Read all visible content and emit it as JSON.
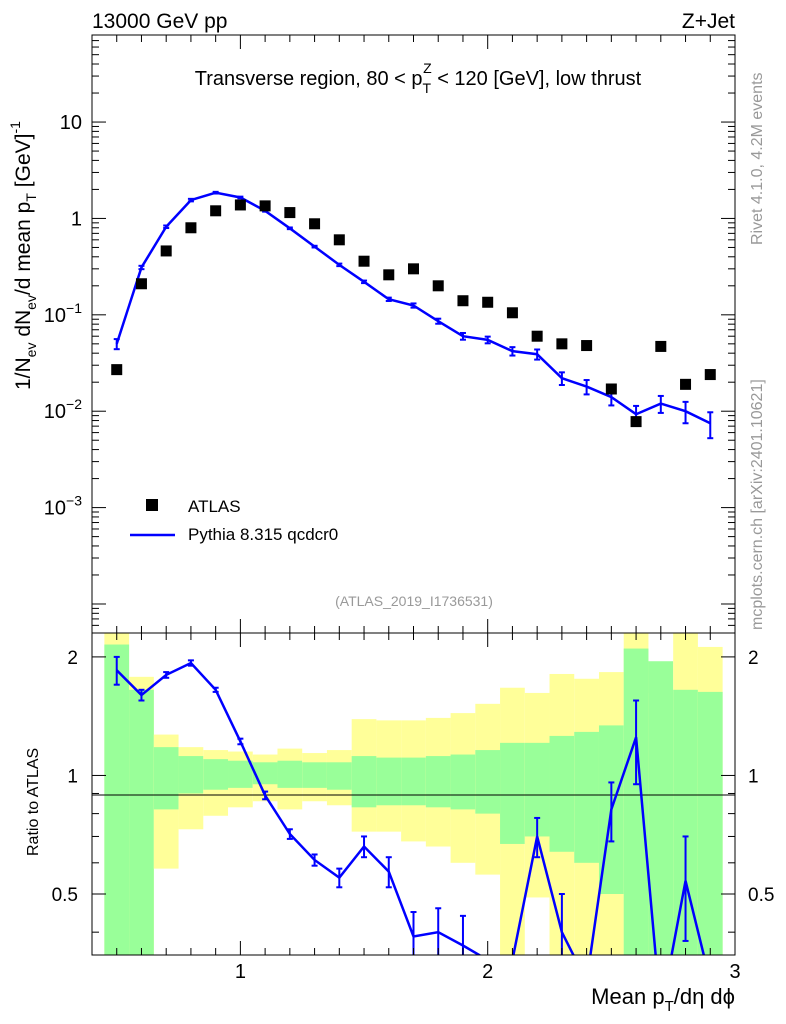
{
  "header": {
    "energy_label": "13000 GeV pp",
    "process_label": "Z+Jet"
  },
  "side_labels": {
    "rivet": "Rivet 4.1.0,  4.2M events",
    "source": "mcplots.cern.ch [arXiv:2401.10621]"
  },
  "chart_data": {
    "type": "scatter",
    "title": "Transverse region, 80 < p_T^Z < 120 [GeV], low thrust",
    "analysis_id": "(ATLAS_2019_I1736531)",
    "xlabel": "Mean p_T/dη dϕ",
    "ylabel": "1/N_ev dN_ev/d mean p_T [GeV]^-1",
    "ratio_ylabel": "Ratio to ATLAS",
    "xlim": [
      0.4,
      3.0
    ],
    "ylim": [
      5e-05,
      80
    ],
    "ratio_ylim": [
      0.35,
      2.3
    ],
    "x_ticks": [
      "1",
      "2",
      "3"
    ],
    "y_ticks": [
      "10^-3",
      "10^-2",
      "10^-1",
      "1",
      "10"
    ],
    "ratio_ticks": [
      "0.5",
      "1",
      "2"
    ],
    "legend": {
      "position": "bottom-left",
      "entries": [
        "ATLAS",
        "Pythia 8.315 qcdcr0"
      ]
    },
    "bin_edges": [
      0.45,
      0.55,
      0.65,
      0.75,
      0.85,
      0.95,
      1.05,
      1.15,
      1.25,
      1.35,
      1.45,
      1.55,
      1.65,
      1.75,
      1.85,
      1.95,
      2.05,
      2.15,
      2.25,
      2.35,
      2.45,
      2.55,
      2.65,
      2.75,
      2.85,
      2.95
    ],
    "x": [
      0.5,
      0.6,
      0.7,
      0.8,
      0.9,
      1.0,
      1.1,
      1.2,
      1.3,
      1.4,
      1.5,
      1.6,
      1.7,
      1.8,
      1.9,
      2.0,
      2.1,
      2.2,
      2.3,
      2.4,
      2.5,
      2.6,
      2.7,
      2.8,
      2.9
    ],
    "series": [
      {
        "name": "ATLAS",
        "color": "#000000",
        "values": [
          0.027,
          0.21,
          0.46,
          0.8,
          1.2,
          1.38,
          1.35,
          1.15,
          0.88,
          0.6,
          0.36,
          0.26,
          0.3,
          0.2,
          0.14,
          0.135,
          0.105,
          0.06,
          0.05,
          0.048,
          0.017,
          0.0078,
          0.047,
          0.019,
          0.024
        ]
      },
      {
        "name": "Pythia 8.315 qcdcr0",
        "color": "#0000ff",
        "values": [
          0.05,
          0.31,
          0.82,
          1.55,
          1.85,
          1.65,
          1.2,
          0.79,
          0.51,
          0.33,
          0.22,
          0.145,
          0.125,
          0.086,
          0.06,
          0.055,
          0.042,
          0.039,
          0.022,
          0.018,
          0.014,
          0.0093,
          0.012,
          0.01,
          0.0075
        ],
        "rel_err": [
          0.12,
          0.04,
          0.03,
          0.03,
          0.02,
          0.02,
          0.02,
          0.02,
          0.02,
          0.03,
          0.03,
          0.04,
          0.05,
          0.06,
          0.08,
          0.08,
          0.1,
          0.12,
          0.15,
          0.17,
          0.18,
          0.22,
          0.2,
          0.25,
          0.3
        ]
      }
    ],
    "ratio": {
      "values": [
        1.85,
        1.6,
        1.8,
        1.93,
        1.65,
        1.22,
        0.89,
        0.71,
        0.61,
        0.55,
        0.66,
        0.57,
        0.39,
        0.4,
        0.37,
        0.34,
        0.34,
        0.7,
        0.4,
        0.3,
        0.82,
        1.25,
        0.25,
        0.54,
        0.3
      ],
      "errors": [
        0.15,
        0.05,
        0.03,
        0.03,
        0.02,
        0.02,
        0.02,
        0.02,
        0.02,
        0.03,
        0.04,
        0.05,
        0.06,
        0.06,
        0.07,
        0.08,
        0.09,
        0.08,
        0.1,
        0.1,
        0.14,
        0.3,
        0.2,
        0.16,
        0.2
      ],
      "band_inner_up": [
        2.15,
        1.65,
        1.18,
        1.12,
        1.1,
        1.09,
        1.08,
        1.09,
        1.08,
        1.08,
        1.12,
        1.11,
        1.11,
        1.12,
        1.13,
        1.16,
        1.21,
        1.21,
        1.26,
        1.29,
        1.34,
        2.1,
        1.95,
        1.65,
        1.63
      ],
      "band_inner_dn": [
        0.3,
        0.35,
        0.82,
        0.9,
        0.92,
        0.93,
        0.95,
        0.93,
        0.93,
        0.92,
        0.83,
        0.84,
        0.84,
        0.83,
        0.82,
        0.8,
        0.67,
        0.7,
        0.64,
        0.6,
        0.5,
        0.3,
        0.3,
        0.3,
        0.3
      ],
      "band_outer_up": [
        2.3,
        1.78,
        1.27,
        1.18,
        1.16,
        1.15,
        1.13,
        1.17,
        1.14,
        1.16,
        1.39,
        1.38,
        1.38,
        1.4,
        1.44,
        1.52,
        1.67,
        1.62,
        1.81,
        1.76,
        1.83,
        2.3,
        1.62,
        2.3,
        2.12
      ],
      "band_outer_dn": [
        0.3,
        0.3,
        0.58,
        0.73,
        0.79,
        0.83,
        0.86,
        0.82,
        0.86,
        0.84,
        0.72,
        0.72,
        0.68,
        0.66,
        0.6,
        0.56,
        0.3,
        0.49,
        0.3,
        0.3,
        0.3,
        0.3,
        0.3,
        0.3,
        0.3
      ]
    },
    "colors": {
      "data": "#000000",
      "mc": "#0000ff",
      "band_inner": "#99ff99",
      "band_outer": "#ffff99",
      "side_text": "#999999"
    }
  }
}
